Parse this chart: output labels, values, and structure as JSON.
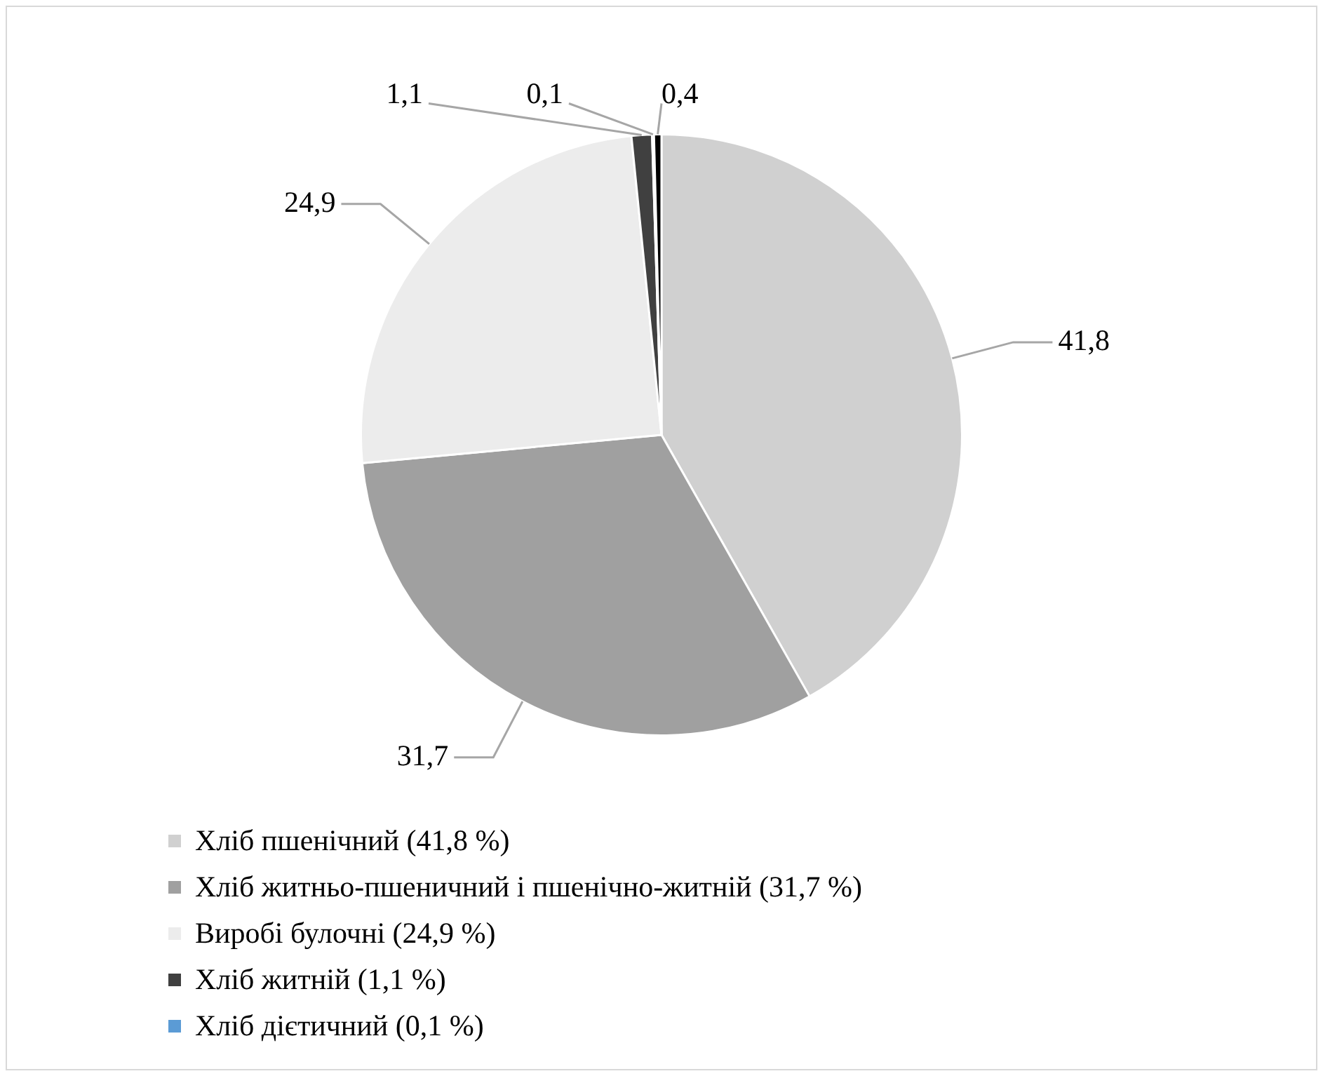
{
  "chart_data": {
    "type": "pie",
    "categories": [
      "Хліб пшенічний (41,8 %)",
      "Хліб житньо-пшеничний і пшенічно-житній (31,7 %)",
      "Виробі булочні (24,9 %)",
      "Хліб житній (1,1 %)",
      "Хліб дієтичний (0,1 %)",
      null
    ],
    "values": [
      41.8,
      31.7,
      24.9,
      1.1,
      0.1,
      0.4
    ],
    "colors": [
      "#d0d0d0",
      "#a0a0a0",
      "#ececec",
      "#404040",
      "#5b9bd5",
      "#000000"
    ],
    "value_labels": [
      "41,8",
      "31,7",
      "24,9",
      "1,1",
      "0,1",
      "0,4"
    ],
    "legend": "bottom"
  }
}
